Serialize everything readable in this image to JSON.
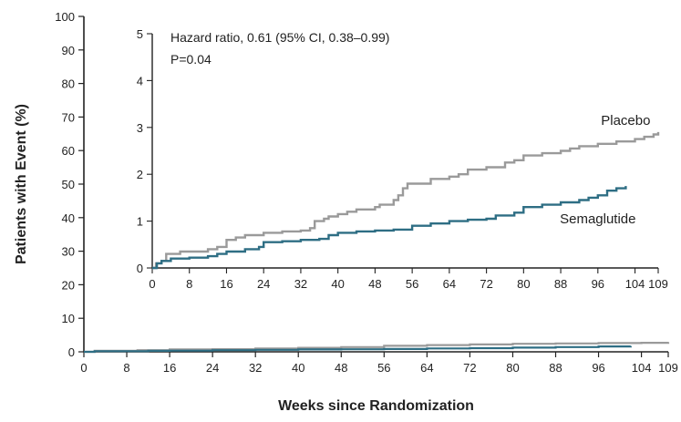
{
  "chart_data": [
    {
      "type": "line",
      "title": "",
      "xlabel": "Weeks since Randomization",
      "ylabel": "Patients with Event (%)",
      "xlim": [
        0,
        109
      ],
      "ylim": [
        0,
        100
      ],
      "x_ticks": [
        "0",
        "8",
        "16",
        "24",
        "32",
        "40",
        "48",
        "56",
        "64",
        "72",
        "80",
        "88",
        "96",
        "104",
        "109"
      ],
      "y_ticks": [
        "0",
        "10",
        "20",
        "30",
        "40",
        "50",
        "60",
        "70",
        "80",
        "90",
        "100"
      ],
      "grid": false,
      "series": [
        {
          "name": "Placebo",
          "color": "#9a9a9a",
          "points": [
            [
              0,
              0
            ],
            [
              2,
              0.3
            ],
            [
              10,
              0.5
            ],
            [
              16,
              0.7
            ],
            [
              24,
              0.8
            ],
            [
              32,
              1.0
            ],
            [
              40,
              1.2
            ],
            [
              48,
              1.4
            ],
            [
              56,
              1.8
            ],
            [
              64,
              2.0
            ],
            [
              72,
              2.2
            ],
            [
              80,
              2.4
            ],
            [
              88,
              2.5
            ],
            [
              96,
              2.6
            ],
            [
              104,
              2.7
            ],
            [
              109,
              2.9
            ]
          ]
        },
        {
          "name": "Semaglutide",
          "color": "#2e6e84",
          "points": [
            [
              0,
              0
            ],
            [
              2,
              0.2
            ],
            [
              12,
              0.3
            ],
            [
              16,
              0.35
            ],
            [
              24,
              0.5
            ],
            [
              32,
              0.6
            ],
            [
              40,
              0.7
            ],
            [
              48,
              0.75
            ],
            [
              56,
              0.85
            ],
            [
              64,
              1.0
            ],
            [
              72,
              1.1
            ],
            [
              80,
              1.25
            ],
            [
              88,
              1.4
            ],
            [
              96,
              1.6
            ],
            [
              102,
              1.75
            ]
          ]
        }
      ]
    },
    {
      "type": "line",
      "inset": true,
      "title": "",
      "xlim": [
        0,
        109
      ],
      "ylim": [
        0,
        5
      ],
      "x_ticks": [
        "0",
        "8",
        "16",
        "24",
        "32",
        "40",
        "48",
        "56",
        "64",
        "72",
        "80",
        "88",
        "96",
        "104",
        "109"
      ],
      "y_ticks": [
        "0",
        "1",
        "2",
        "3",
        "4",
        "5"
      ],
      "annotation": [
        "Hazard ratio, 0.61 (95% CI, 0.38–0.99)",
        "P=0.04"
      ],
      "series": [
        {
          "name": "Placebo",
          "label": "Placebo",
          "color": "#9a9a9a",
          "points": [
            [
              0,
              0
            ],
            [
              0.8,
              0.1
            ],
            [
              2,
              0.15
            ],
            [
              3,
              0.3
            ],
            [
              6,
              0.35
            ],
            [
              12,
              0.4
            ],
            [
              14,
              0.45
            ],
            [
              16,
              0.6
            ],
            [
              18,
              0.65
            ],
            [
              20,
              0.7
            ],
            [
              24,
              0.75
            ],
            [
              28,
              0.78
            ],
            [
              32,
              0.8
            ],
            [
              34,
              0.85
            ],
            [
              35,
              1.0
            ],
            [
              37,
              1.05
            ],
            [
              38,
              1.1
            ],
            [
              40,
              1.15
            ],
            [
              42,
              1.2
            ],
            [
              44,
              1.25
            ],
            [
              48,
              1.3
            ],
            [
              49,
              1.35
            ],
            [
              52,
              1.45
            ],
            [
              53,
              1.55
            ],
            [
              54,
              1.7
            ],
            [
              55,
              1.8
            ],
            [
              60,
              1.9
            ],
            [
              64,
              1.95
            ],
            [
              66,
              2.0
            ],
            [
              68,
              2.1
            ],
            [
              72,
              2.15
            ],
            [
              76,
              2.25
            ],
            [
              78,
              2.3
            ],
            [
              80,
              2.4
            ],
            [
              84,
              2.45
            ],
            [
              88,
              2.5
            ],
            [
              90,
              2.55
            ],
            [
              92,
              2.6
            ],
            [
              96,
              2.65
            ],
            [
              100,
              2.7
            ],
            [
              104,
              2.75
            ],
            [
              106,
              2.8
            ],
            [
              108,
              2.85
            ],
            [
              109,
              2.9
            ]
          ]
        },
        {
          "name": "Semaglutide",
          "label": "Semaglutide",
          "color": "#2e6e84",
          "points": [
            [
              0,
              0
            ],
            [
              1,
              0.1
            ],
            [
              2,
              0.15
            ],
            [
              4,
              0.2
            ],
            [
              8,
              0.22
            ],
            [
              12,
              0.25
            ],
            [
              14,
              0.3
            ],
            [
              16,
              0.35
            ],
            [
              20,
              0.4
            ],
            [
              23,
              0.45
            ],
            [
              24,
              0.55
            ],
            [
              28,
              0.57
            ],
            [
              32,
              0.6
            ],
            [
              36,
              0.62
            ],
            [
              38,
              0.7
            ],
            [
              40,
              0.75
            ],
            [
              44,
              0.78
            ],
            [
              48,
              0.8
            ],
            [
              52,
              0.82
            ],
            [
              56,
              0.9
            ],
            [
              60,
              0.95
            ],
            [
              64,
              1.0
            ],
            [
              68,
              1.03
            ],
            [
              72,
              1.05
            ],
            [
              74,
              1.12
            ],
            [
              78,
              1.18
            ],
            [
              80,
              1.3
            ],
            [
              84,
              1.35
            ],
            [
              88,
              1.4
            ],
            [
              92,
              1.45
            ],
            [
              94,
              1.5
            ],
            [
              96,
              1.55
            ],
            [
              98,
              1.65
            ],
            [
              100,
              1.7
            ],
            [
              102,
              1.75
            ]
          ]
        }
      ]
    }
  ]
}
